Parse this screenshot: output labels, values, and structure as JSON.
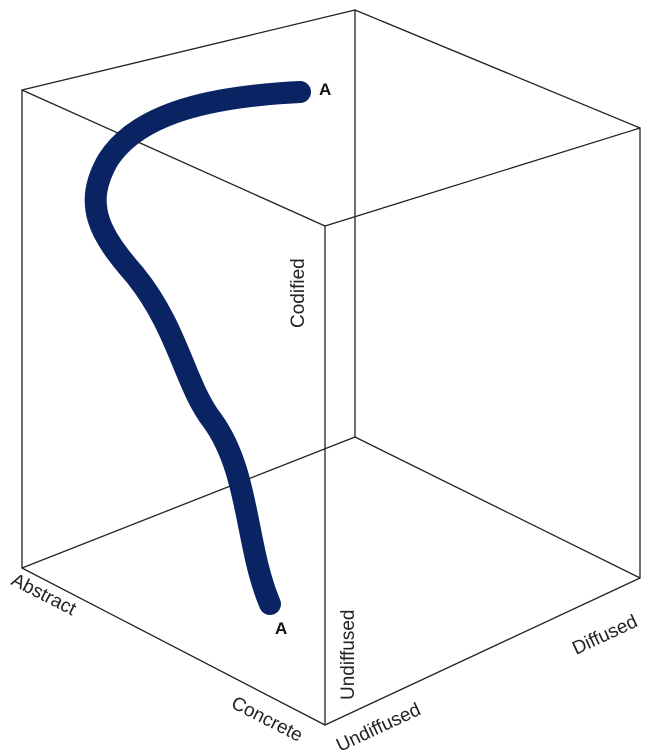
{
  "diagram": {
    "axes": {
      "abstract": "Abstract",
      "concrete": "Concrete",
      "undiffused_front": "Undiffused",
      "diffused": "Diffused",
      "undiffused_vertical": "Undiffused",
      "codified": "Codified"
    },
    "path": {
      "start_label": "A",
      "end_label": "A",
      "color": "#0a2463"
    },
    "line_color": "#222222"
  }
}
